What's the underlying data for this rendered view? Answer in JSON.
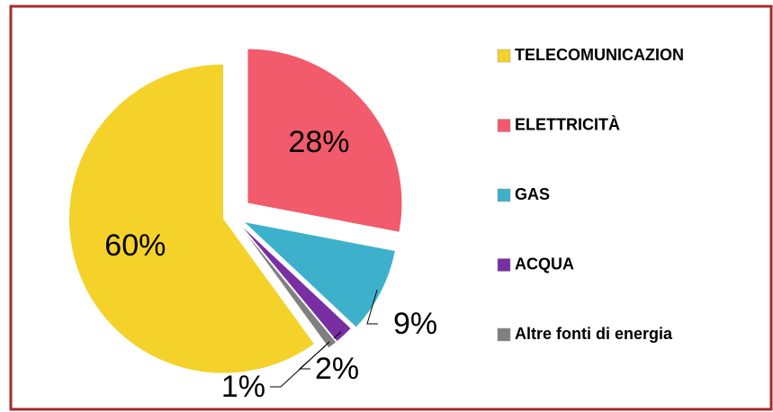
{
  "chart_data": {
    "type": "pie",
    "categories": [
      "TELECOMUNICAZION",
      "ELETTRICITÀ",
      "GAS",
      "ACQUA",
      "Altre fonti di energia"
    ],
    "values": [
      60,
      28,
      9,
      2,
      1
    ],
    "value_labels": [
      "60%",
      "28%",
      "9%",
      "2%",
      "1%"
    ],
    "colors": [
      "#f4d22a",
      "#f15b6b",
      "#3db1cc",
      "#7a2ea3",
      "#808080"
    ],
    "legend": "right"
  }
}
